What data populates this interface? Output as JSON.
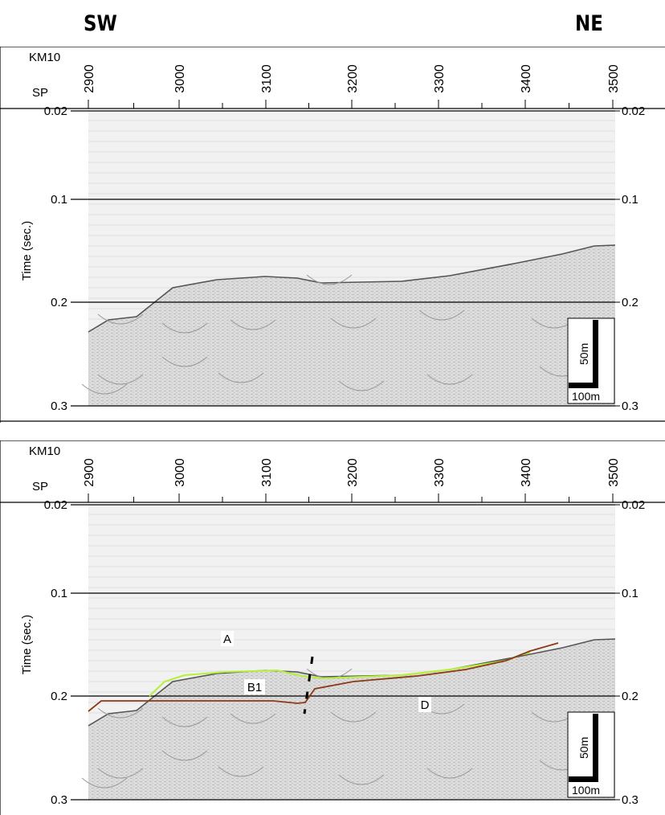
{
  "directions": {
    "left": "SW",
    "right": "NE"
  },
  "panels": [
    {
      "id": "top",
      "line_name": "KM10",
      "sp_label": "SP",
      "sp_ticks": [
        "2900",
        "3000",
        "3100",
        "3200",
        "3300",
        "3400",
        "3500"
      ],
      "time_ticks": [
        "0.02",
        "0.1",
        "0.2",
        "0.3"
      ],
      "ylabel": "Time (sec.)",
      "scale": {
        "vertical": "50m",
        "horizontal": "100m"
      }
    },
    {
      "id": "bottom",
      "line_name": "KM10",
      "sp_label": "SP",
      "sp_ticks": [
        "2900",
        "3000",
        "3100",
        "3200",
        "3300",
        "3400",
        "3500"
      ],
      "time_ticks": [
        "0.02",
        "0.1",
        "0.2",
        "0.3"
      ],
      "ylabel": "Time (sec.)",
      "scale": {
        "vertical": "50m",
        "horizontal": "100m"
      },
      "units": [
        "A",
        "B1",
        "D"
      ]
    }
  ],
  "colors": {
    "horizon_green": "#b6f03a",
    "horizon_brown": "#8b3a16",
    "section_bg": "#e9e9e9"
  }
}
